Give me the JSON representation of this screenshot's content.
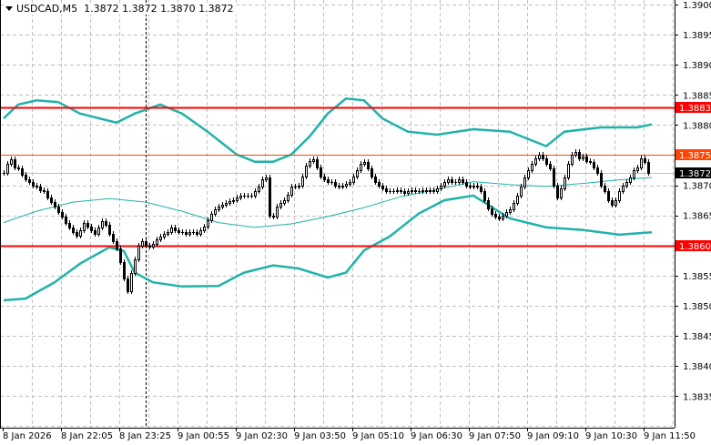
{
  "header": {
    "symbol_timeframe": "USDCAD,M5",
    "ohlc_text": "1.3872 1.3872 1.3870 1.3872"
  },
  "chart_data": {
    "type": "candlestick",
    "title": "USDCAD,M5",
    "ylim": [
      1.38298,
      1.39
    ],
    "y_ticks": [
      "1.3900",
      "1.3895",
      "1.3890",
      "1.3885",
      "1.3880",
      "1.3870",
      "1.3865",
      "1.3855",
      "1.3850",
      "1.3845",
      "1.3840",
      "1.3835"
    ],
    "x_tick_labels": [
      "8 Jan 2026",
      "8 Jan 22:05",
      "8 Jan 23:25",
      "9 Jan 00:55",
      "9 Jan 02:30",
      "9 Jan 03:50",
      "9 Jan 05:10",
      "9 Jan 06:30",
      "9 Jan 07:50",
      "9 Jan 09:10",
      "9 Jan 10:30",
      "9 Jan 11:50"
    ],
    "grid": true,
    "closes": [
      1.38721,
      1.38735,
      1.38743,
      1.3873,
      1.38728,
      1.38718,
      1.3871,
      1.38706,
      1.387,
      1.38698,
      1.38692,
      1.3869,
      1.3868,
      1.38672,
      1.38665,
      1.38655,
      1.38648,
      1.38638,
      1.3863,
      1.38622,
      1.38617,
      1.38625,
      1.38638,
      1.38632,
      1.38625,
      1.3862,
      1.3863,
      1.3864,
      1.38635,
      1.3862,
      1.38607,
      1.38595,
      1.38572,
      1.38545,
      1.38524,
      1.38555,
      1.38577,
      1.386,
      1.38607,
      1.386,
      1.38598,
      1.38603,
      1.3861,
      1.38615,
      1.3862,
      1.38623,
      1.3863,
      1.38625,
      1.38623,
      1.38623,
      1.3862,
      1.38623,
      1.38623,
      1.3862,
      1.38625,
      1.38632,
      1.38642,
      1.38653,
      1.3866,
      1.38665,
      1.38668,
      1.3867,
      1.38673,
      1.38675,
      1.3868,
      1.38683,
      1.38683,
      1.38683,
      1.38683,
      1.3869,
      1.38698,
      1.3871,
      1.38713,
      1.3865,
      1.38648,
      1.38665,
      1.3867,
      1.38675,
      1.38685,
      1.38698,
      1.38698,
      1.387,
      1.38715,
      1.38733,
      1.3874,
      1.38743,
      1.3873,
      1.38715,
      1.3871,
      1.38706,
      1.38705,
      1.387,
      1.38698,
      1.387,
      1.38703,
      1.38706,
      1.38715,
      1.38725,
      1.38736,
      1.38738,
      1.38728,
      1.38715,
      1.38706,
      1.387,
      1.38695,
      1.3869,
      1.3869,
      1.3869,
      1.38692,
      1.3869,
      1.38688,
      1.3869,
      1.38692,
      1.3869,
      1.3869,
      1.38692,
      1.3869,
      1.38692,
      1.3869,
      1.38695,
      1.387,
      1.38706,
      1.3871,
      1.38706,
      1.38706,
      1.3871,
      1.38705,
      1.387,
      1.38698,
      1.387,
      1.38698,
      1.3869,
      1.38675,
      1.38662,
      1.38653,
      1.38648,
      1.38645,
      1.3865,
      1.38655,
      1.3866,
      1.3867,
      1.38683,
      1.38698,
      1.38713,
      1.38725,
      1.38736,
      1.38745,
      1.3875,
      1.38745,
      1.38735,
      1.38728,
      1.387,
      1.3868,
      1.38695,
      1.38713,
      1.38736,
      1.3875,
      1.38755,
      1.38745,
      1.38748,
      1.3874,
      1.38738,
      1.3873,
      1.3872,
      1.387,
      1.3869,
      1.38675,
      1.38668,
      1.38675,
      1.3869,
      1.387,
      1.38706,
      1.38713,
      1.38725,
      1.3873,
      1.38745,
      1.38738,
      1.3872
    ],
    "bollinger": {
      "upper": [
        [
          0,
          1.38811
        ],
        [
          4,
          1.38834
        ],
        [
          9,
          1.38841
        ],
        [
          15,
          1.38838
        ],
        [
          21,
          1.38819
        ],
        [
          31,
          1.38804
        ],
        [
          36,
          1.38819
        ],
        [
          43,
          1.38834
        ],
        [
          49,
          1.38819
        ],
        [
          56,
          1.38789
        ],
        [
          64,
          1.38751
        ],
        [
          69,
          1.38739
        ],
        [
          74,
          1.38739
        ],
        [
          79,
          1.38751
        ],
        [
          84,
          1.38781
        ],
        [
          89,
          1.38819
        ],
        [
          94,
          1.38844
        ],
        [
          99,
          1.38841
        ],
        [
          104,
          1.38811
        ],
        [
          111,
          1.38789
        ],
        [
          119,
          1.38784
        ],
        [
          129,
          1.38793
        ],
        [
          139,
          1.38789
        ],
        [
          149,
          1.38765
        ],
        [
          154,
          1.38789
        ],
        [
          164,
          1.38796
        ],
        [
          174,
          1.38796
        ],
        [
          178,
          1.38801
        ]
      ],
      "middle": [
        [
          0,
          1.38638
        ],
        [
          9,
          1.38657
        ],
        [
          19,
          1.38672
        ],
        [
          29,
          1.38678
        ],
        [
          39,
          1.38672
        ],
        [
          49,
          1.38657
        ],
        [
          59,
          1.38638
        ],
        [
          69,
          1.3863
        ],
        [
          79,
          1.38636
        ],
        [
          89,
          1.38648
        ],
        [
          99,
          1.38663
        ],
        [
          109,
          1.38681
        ],
        [
          119,
          1.38693
        ],
        [
          129,
          1.38706
        ],
        [
          139,
          1.38701
        ],
        [
          149,
          1.38698
        ],
        [
          159,
          1.38703
        ],
        [
          169,
          1.38709
        ],
        [
          178,
          1.38713
        ]
      ],
      "lower": [
        [
          0,
          1.38509
        ],
        [
          6,
          1.38512
        ],
        [
          14,
          1.38539
        ],
        [
          21,
          1.3857
        ],
        [
          29,
          1.38597
        ],
        [
          33,
          1.38591
        ],
        [
          36,
          1.38555
        ],
        [
          41,
          1.38539
        ],
        [
          49,
          1.38532
        ],
        [
          59,
          1.38533
        ],
        [
          66,
          1.38555
        ],
        [
          74,
          1.38567
        ],
        [
          81,
          1.38562
        ],
        [
          89,
          1.38547
        ],
        [
          94,
          1.38555
        ],
        [
          99,
          1.38592
        ],
        [
          106,
          1.38615
        ],
        [
          114,
          1.38653
        ],
        [
          121,
          1.38675
        ],
        [
          129,
          1.38683
        ],
        [
          139,
          1.38645
        ],
        [
          149,
          1.3863
        ],
        [
          159,
          1.38626
        ],
        [
          169,
          1.38618
        ],
        [
          178,
          1.38622
        ]
      ],
      "color": "#20b2aa"
    },
    "levels": [
      {
        "price": 1.3883,
        "label": "1.3883",
        "color": "#ff0000",
        "thick": true
      },
      {
        "price": 1.3875,
        "label": "1.3875",
        "color": "#ff4500",
        "thick": false
      },
      {
        "price": 1.386,
        "label": "1.3860",
        "color": "#ff0000",
        "thick": true
      }
    ],
    "bid": {
      "price": 1.3872,
      "label": "1.3872",
      "color": "#c0c0c0"
    },
    "crosshair_bar": 39
  }
}
